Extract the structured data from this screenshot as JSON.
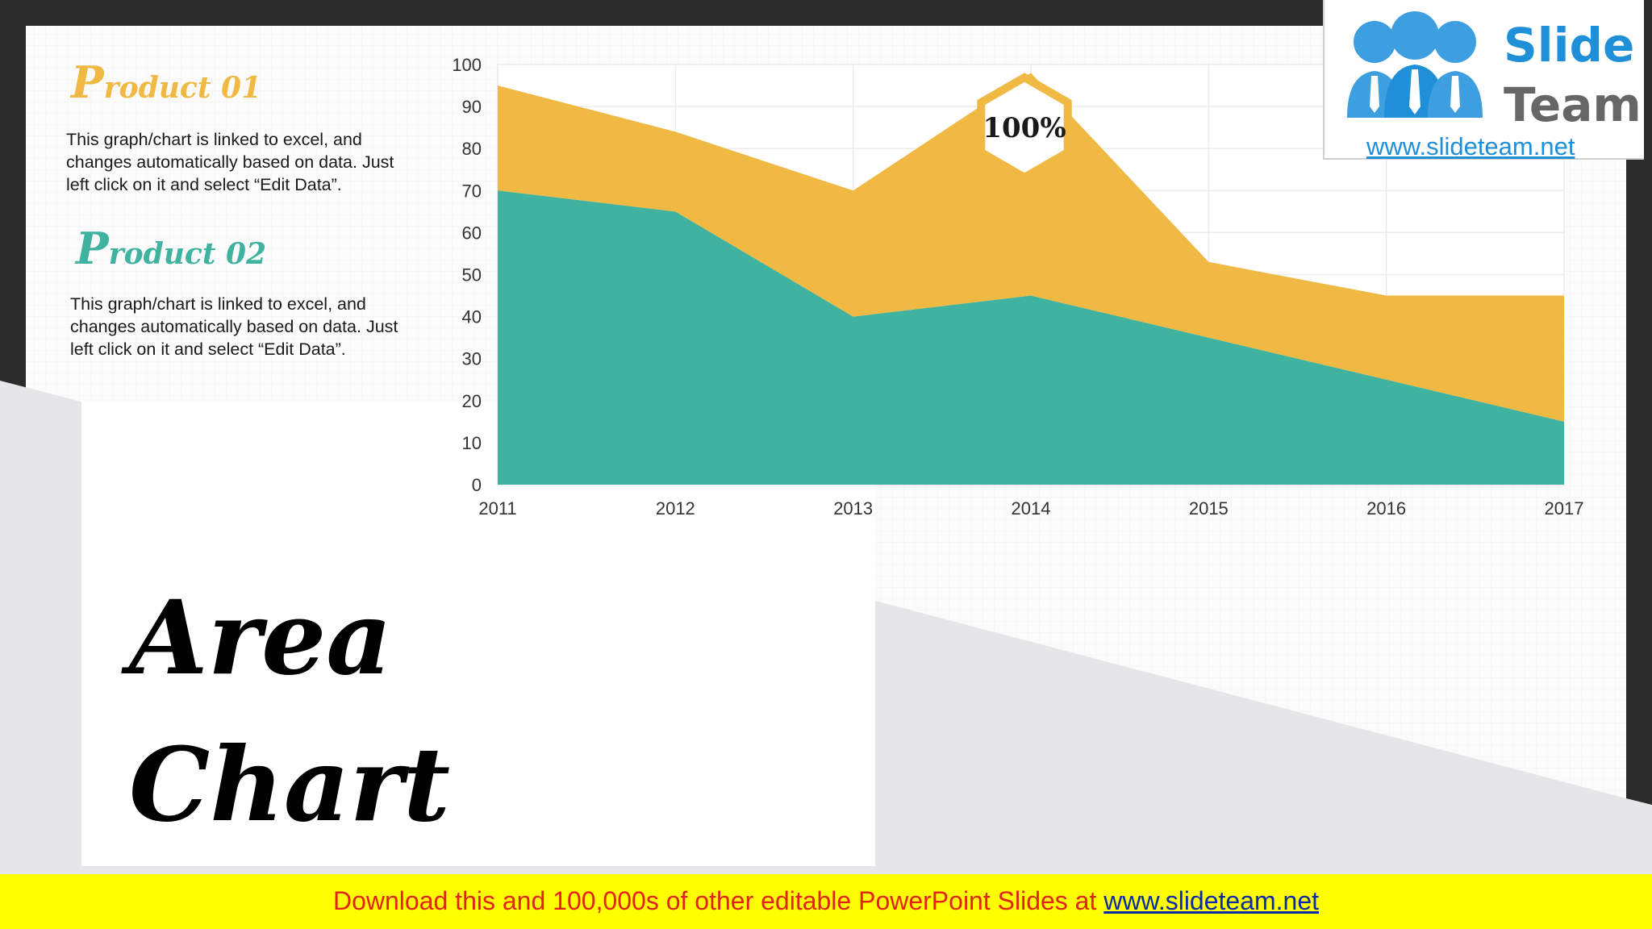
{
  "title": {
    "line1": "Area",
    "line2": "Chart"
  },
  "products": [
    {
      "initial": "P",
      "rest": "roduct 01",
      "description_lines": [
        "This graph/chart is linked to excel, and",
        "changes automatically based on data. Just",
        "left click on it and select “Edit Data”."
      ]
    },
    {
      "initial": "P",
      "rest": "roduct 02",
      "description_lines": [
        "This graph/chart is linked to excel, and",
        "changes automatically based on data. Just",
        "left click on it and select “Edit Data”."
      ]
    }
  ],
  "logo": {
    "line1": "Slide",
    "line2": "Team",
    "url": "www.slideteam.net",
    "icon": "people-group-icon"
  },
  "banner": {
    "text": "Download this and 100,000s of other editable PowerPoint Slides at ",
    "link": "www.slideteam.net"
  },
  "callout": {
    "text": "100%",
    "icon": "hexagon-icon"
  },
  "colors": {
    "product01": "#efb943",
    "product02": "#3fb2a0",
    "accent_title01": "#efb943",
    "accent_title02": "#3fb2a0",
    "banner_bg": "#ffff00",
    "banner_text": "#e2231a",
    "banner_link": "#0b2aa6",
    "logo_blue": "#1f8fd8"
  },
  "chart_data": {
    "type": "area",
    "stacked": true,
    "categories": [
      "2011",
      "2012",
      "2013",
      "2014",
      "2015",
      "2016",
      "2017"
    ],
    "series": [
      {
        "name": "Product 02",
        "values": [
          70,
          65,
          40,
          45,
          35,
          25,
          15
        ],
        "color": "#3fb2a0"
      },
      {
        "name": "Product 01",
        "values": [
          25,
          19,
          30,
          53,
          18,
          20,
          30
        ],
        "color": "#efb943"
      }
    ],
    "y_ticks": [
      0,
      10,
      20,
      30,
      40,
      50,
      60,
      70,
      80,
      90,
      100
    ],
    "ylim": [
      0,
      100
    ],
    "grid": true,
    "legend": "none"
  }
}
